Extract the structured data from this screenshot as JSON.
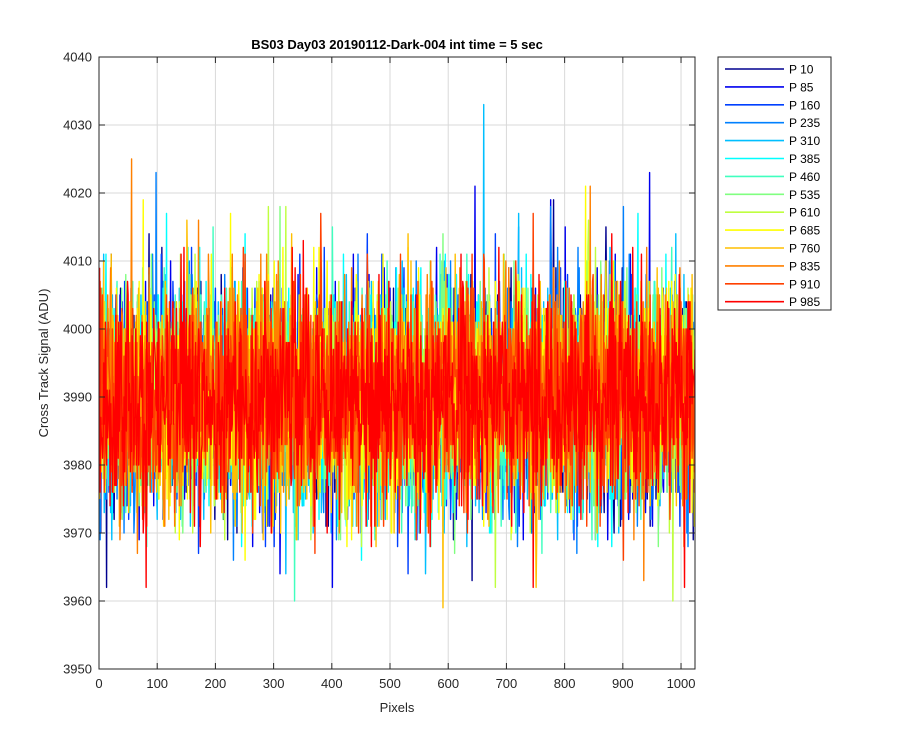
{
  "chart_data": {
    "type": "line",
    "title": "BS03 Day03 20190112-Dark-004 int time = 5 sec",
    "xlabel": "Pixels",
    "ylabel": "Cross Track Signal (ADU)",
    "xlim": [
      0,
      1024
    ],
    "ylim": [
      3950,
      4040
    ],
    "x_ticks": [
      "0",
      "100",
      "200",
      "300",
      "400",
      "500",
      "600",
      "700",
      "800",
      "900",
      "1000"
    ],
    "y_ticks": [
      "3950",
      "3960",
      "3970",
      "3980",
      "3990",
      "4000",
      "4010",
      "4020",
      "4030",
      "4040"
    ],
    "grid": true,
    "legend_position": "outside-right",
    "n_pixels": 1024,
    "noise_model": {
      "mean": 3990,
      "stdev": 8
    },
    "series": [
      {
        "name": "P 10",
        "color": "#00008f",
        "peaks": [
          [
            85,
            4014
          ],
          [
            780,
            4019
          ],
          [
            870,
            4015
          ]
        ],
        "troughs": [
          [
            12,
            3962
          ],
          [
            640,
            3963
          ]
        ]
      },
      {
        "name": "P 85",
        "color": "#0000ef",
        "peaks": [
          [
            645,
            4021
          ],
          [
            775,
            4019
          ],
          [
            945,
            4023
          ],
          [
            800,
            4015
          ]
        ],
        "troughs": [
          [
            400,
            3962
          ],
          [
            310,
            3964
          ]
        ]
      },
      {
        "name": "P 160",
        "color": "#0040ff",
        "peaks": [
          [
            680,
            4014
          ],
          [
            720,
            4015
          ],
          [
            460,
            4014
          ]
        ],
        "troughs": [
          [
            530,
            3964
          ],
          [
            170,
            3967
          ]
        ]
      },
      {
        "name": "P 235",
        "color": "#0080ff",
        "peaks": [
          [
            97,
            4023
          ],
          [
            775,
            4018
          ],
          [
            900,
            4018
          ]
        ],
        "troughs": [
          [
            230,
            3966
          ],
          [
            820,
            3967
          ]
        ]
      },
      {
        "name": "P 310",
        "color": "#00bfff",
        "peaks": [
          [
            660,
            4033
          ],
          [
            720,
            4017
          ],
          [
            990,
            4014
          ]
        ],
        "troughs": [
          [
            320,
            3964
          ],
          [
            560,
            3964
          ]
        ]
      },
      {
        "name": "P 385",
        "color": "#00ffff",
        "peaks": [
          [
            115,
            4017
          ],
          [
            250,
            4014
          ],
          [
            925,
            4017
          ]
        ],
        "troughs": [
          [
            450,
            3966
          ],
          [
            880,
            3968
          ]
        ]
      },
      {
        "name": "P 460",
        "color": "#40ffbf",
        "peaks": [
          [
            195,
            4015
          ],
          [
            400,
            4015
          ]
        ],
        "troughs": [
          [
            335,
            3960
          ],
          [
            760,
            3967
          ]
        ]
      },
      {
        "name": "P 535",
        "color": "#80ff80",
        "peaks": [
          [
            310,
            4018
          ],
          [
            590,
            4014
          ]
        ],
        "troughs": [
          [
            610,
            3967
          ],
          [
            960,
            3968
          ]
        ]
      },
      {
        "name": "P 610",
        "color": "#bfff40",
        "peaks": [
          [
            290,
            4018
          ],
          [
            320,
            4018
          ],
          [
            840,
            4016
          ]
        ],
        "troughs": [
          [
            680,
            3962
          ],
          [
            985,
            3960
          ]
        ]
      },
      {
        "name": "P 685",
        "color": "#ffff00",
        "peaks": [
          [
            75,
            4019
          ],
          [
            835,
            4021
          ],
          [
            225,
            4017
          ]
        ],
        "troughs": [
          [
            250,
            3966
          ],
          [
            425,
            3968
          ]
        ]
      },
      {
        "name": "P 760",
        "color": "#ffbf00",
        "peaks": [
          [
            150,
            4016
          ],
          [
            330,
            4014
          ],
          [
            530,
            4014
          ]
        ],
        "troughs": [
          [
            590,
            3959
          ],
          [
            750,
            3962
          ]
        ]
      },
      {
        "name": "P 835",
        "color": "#ff8000",
        "peaks": [
          [
            55,
            4025
          ],
          [
            170,
            4016
          ],
          [
            843,
            4021
          ]
        ],
        "troughs": [
          [
            65,
            3967
          ],
          [
            935,
            3963
          ]
        ]
      },
      {
        "name": "P 910",
        "color": "#ff4000",
        "peaks": [
          [
            380,
            4017
          ],
          [
            745,
            4017
          ]
        ],
        "troughs": [
          [
            370,
            3967
          ],
          [
            900,
            3966
          ]
        ]
      },
      {
        "name": "P 985",
        "color": "#ff0000",
        "peaks": [
          [
            880,
            4014
          ],
          [
            350,
            4013
          ]
        ],
        "troughs": [
          [
            80,
            3962
          ],
          [
            745,
            3962
          ],
          [
            1005,
            3962
          ]
        ]
      }
    ]
  }
}
